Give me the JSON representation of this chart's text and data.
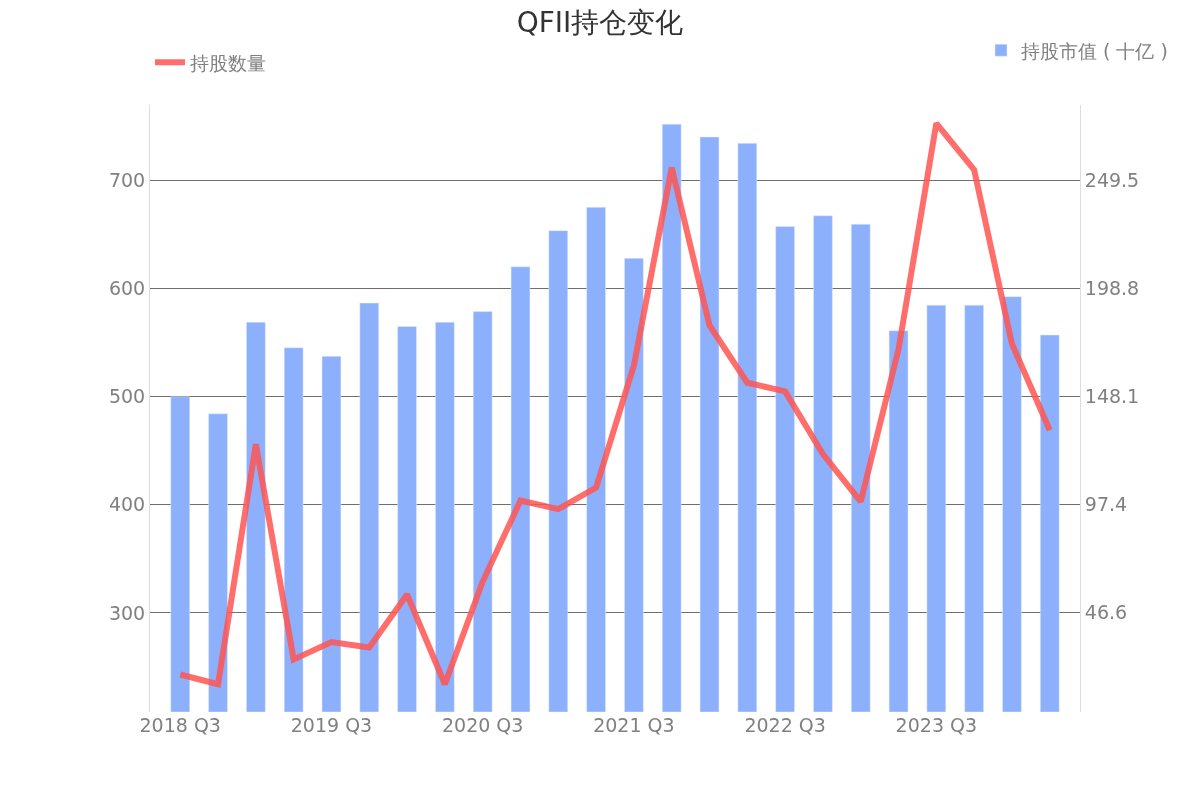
{
  "chart_data": {
    "type": "bar",
    "title": "QFII持仓变化",
    "categories": [
      "2018 Q3",
      null,
      null,
      null,
      "2019 Q3",
      null,
      null,
      null,
      "2020 Q3",
      null,
      null,
      null,
      "2021 Q3",
      null,
      null,
      null,
      "2022 Q3",
      null,
      null,
      null,
      "2023 Q3",
      null,
      null,
      null
    ],
    "series": [
      {
        "name": "持股市值 ( 十亿 )",
        "axis": "y2",
        "color": "#8cb0fc",
        "values": [
          148,
          140,
          183,
          171,
          167,
          192,
          181,
          183,
          188,
          209,
          226,
          237,
          213,
          276,
          270,
          267,
          228,
          233,
          229,
          179,
          191,
          191,
          195,
          177
        ]
      },
      {
        "name": "持股数量",
        "type": "line",
        "color": "#ff5552",
        "values": [
          243,
          234,
          456,
          257,
          273,
          268,
          317,
          234,
          329,
          404,
          396,
          416,
          529,
          712,
          566,
          513,
          505,
          447,
          403,
          544,
          753,
          710,
          549,
          469
        ]
      }
    ],
    "ylim": [
      208.3,
      770
    ],
    "yticks": [
      300,
      400,
      500,
      600,
      700
    ],
    "y2lim": [
      0,
      285
    ],
    "y2ticks": [
      46.6,
      97.4,
      148.1,
      198.8,
      249.5
    ],
    "grid": "y",
    "legend": "top",
    "marker": "none",
    "line_style": "solid"
  }
}
